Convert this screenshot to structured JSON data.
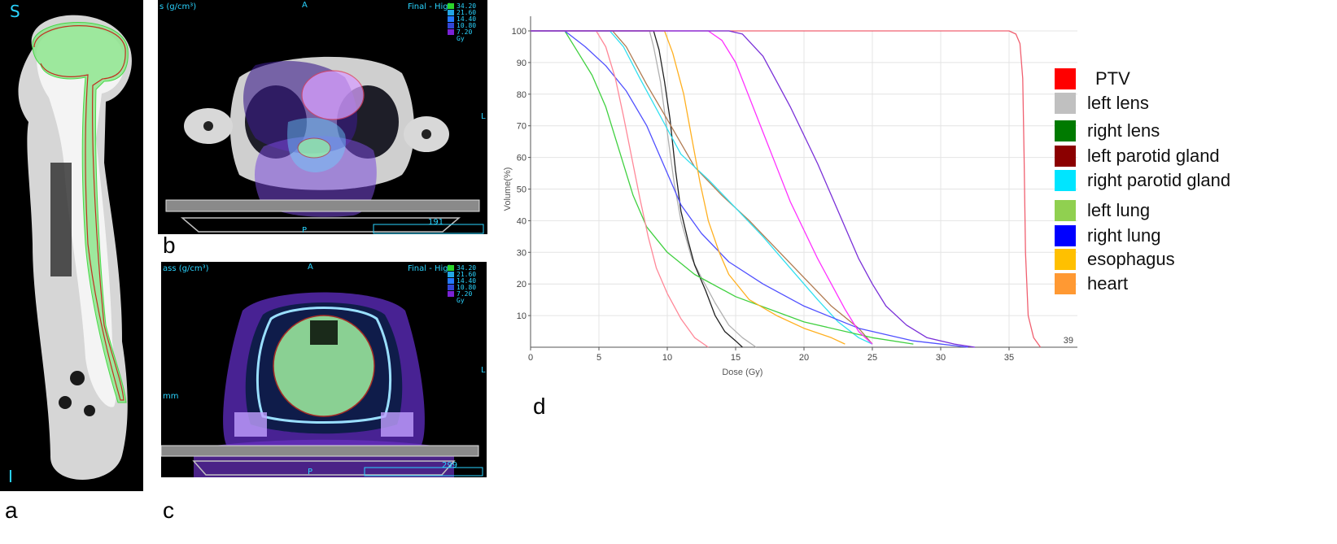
{
  "panels": {
    "a": {
      "label": "a",
      "superior": "S",
      "inferior": "I"
    },
    "b": {
      "label": "b",
      "unit": "s (g/cm³)",
      "anterior": "A",
      "posterior": "P",
      "left": "L",
      "mode": "Final - High",
      "slice": "191"
    },
    "c": {
      "label": "c",
      "unit": "ass (g/cm³)",
      "anterior": "A",
      "posterior": "P",
      "left": "L",
      "mode": "Final - High",
      "slice": "299",
      "side": "mm"
    },
    "d": {
      "label": "d"
    }
  },
  "dose_scale": {
    "unit": "Gy",
    "levels": [
      {
        "value": "34.20",
        "color": "#2bd62b"
      },
      {
        "value": "21.60",
        "color": "#23a6e6"
      },
      {
        "value": "14.40",
        "color": "#2379ff"
      },
      {
        "value": "10.80",
        "color": "#3247d6"
      },
      {
        "value": "7.20",
        "color": "#7a22d6"
      }
    ]
  },
  "chart_data": {
    "type": "line",
    "title": "",
    "xlabel": "Dose (Gy)",
    "ylabel": "Volume(%)",
    "xlim": [
      0,
      40
    ],
    "ylim": [
      0,
      100
    ],
    "xticks": [
      0,
      5,
      10,
      15,
      20,
      25,
      30,
      35
    ],
    "yticks": [
      10,
      20,
      30,
      40,
      50,
      60,
      70,
      80,
      90,
      100
    ],
    "corner_label": "39",
    "grid": true,
    "legend": {
      "position": "right"
    },
    "series": [
      {
        "name": "PTV",
        "color": "#ff0000",
        "line_color": "#f06070",
        "points": [
          [
            0,
            100
          ],
          [
            35,
            100
          ],
          [
            35.5,
            99
          ],
          [
            35.8,
            96
          ],
          [
            36.0,
            85
          ],
          [
            36.1,
            60
          ],
          [
            36.2,
            30
          ],
          [
            36.4,
            10
          ],
          [
            36.8,
            3
          ],
          [
            37.3,
            0
          ]
        ]
      },
      {
        "name": "left lens",
        "color": "#c0c0c0",
        "line_color": "#b0b0b0",
        "points": [
          [
            0,
            100
          ],
          [
            8.7,
            100
          ],
          [
            9.0,
            95
          ],
          [
            9.5,
            84
          ],
          [
            10.0,
            68
          ],
          [
            10.5,
            52
          ],
          [
            11.0,
            40
          ],
          [
            11.8,
            28
          ],
          [
            12.5,
            22
          ],
          [
            13.5,
            14
          ],
          [
            14.5,
            7
          ],
          [
            15.5,
            3
          ],
          [
            16.5,
            0
          ]
        ]
      },
      {
        "name": "right lens",
        "color": "#007a00",
        "line_color": "#202020",
        "points": [
          [
            0,
            100
          ],
          [
            9.0,
            100
          ],
          [
            9.4,
            94
          ],
          [
            9.8,
            84
          ],
          [
            10.2,
            72
          ],
          [
            10.6,
            56
          ],
          [
            11.0,
            43
          ],
          [
            11.5,
            34
          ],
          [
            12.0,
            26
          ],
          [
            12.8,
            18
          ],
          [
            13.5,
            10
          ],
          [
            14.2,
            5
          ],
          [
            15.0,
            2
          ],
          [
            15.5,
            0
          ]
        ]
      },
      {
        "name": "left parotid gland",
        "color": "#8b0000",
        "line_color": "#b07a50",
        "points": [
          [
            0,
            100
          ],
          [
            6.0,
            100
          ],
          [
            7.0,
            95
          ],
          [
            8.5,
            83
          ],
          [
            10.0,
            72
          ],
          [
            12.0,
            57
          ],
          [
            14.0,
            48
          ],
          [
            16.0,
            40
          ],
          [
            18.0,
            31
          ],
          [
            20.0,
            22
          ],
          [
            22.0,
            13
          ],
          [
            24.0,
            6
          ],
          [
            25.0,
            1
          ]
        ]
      },
      {
        "name": "right parotid gland",
        "color": "#00e5ff",
        "line_color": "#30e0f0",
        "points": [
          [
            0,
            100
          ],
          [
            5.8,
            100
          ],
          [
            6.8,
            95
          ],
          [
            8.0,
            85
          ],
          [
            9.5,
            73
          ],
          [
            11.0,
            61
          ],
          [
            13.0,
            53
          ],
          [
            15.0,
            44
          ],
          [
            17.0,
            35
          ],
          [
            19.0,
            25
          ],
          [
            21.0,
            15
          ],
          [
            22.5,
            8
          ],
          [
            24.0,
            3
          ],
          [
            25.0,
            1
          ]
        ]
      },
      {
        "name": "left lung",
        "color": "#90d050",
        "line_color": "#40d040",
        "points": [
          [
            0,
            100
          ],
          [
            2.5,
            100
          ],
          [
            3.5,
            93
          ],
          [
            4.5,
            86
          ],
          [
            5.5,
            76
          ],
          [
            6.5,
            62
          ],
          [
            7.5,
            48
          ],
          [
            8.5,
            38
          ],
          [
            10.0,
            30
          ],
          [
            12.0,
            23
          ],
          [
            15.0,
            16
          ],
          [
            20.0,
            8
          ],
          [
            25.0,
            3
          ],
          [
            28.0,
            1
          ]
        ]
      },
      {
        "name": "right lung",
        "color": "#0000ff",
        "line_color": "#5050ff",
        "points": [
          [
            0,
            100
          ],
          [
            2.5,
            100
          ],
          [
            4.0,
            95
          ],
          [
            5.5,
            89
          ],
          [
            7.0,
            81
          ],
          [
            8.5,
            70
          ],
          [
            10.0,
            55
          ],
          [
            11.0,
            45
          ],
          [
            12.5,
            36
          ],
          [
            14.5,
            27
          ],
          [
            17.0,
            20
          ],
          [
            20.0,
            13
          ],
          [
            24.0,
            6
          ],
          [
            28.0,
            2
          ],
          [
            32.0,
            0
          ]
        ]
      },
      {
        "name": "esophagus",
        "color": "#ffc000",
        "line_color": "#ffb020",
        "points": [
          [
            0,
            100
          ],
          [
            9.8,
            100
          ],
          [
            10.4,
            93
          ],
          [
            11.2,
            80
          ],
          [
            11.8,
            66
          ],
          [
            12.4,
            52
          ],
          [
            13.0,
            40
          ],
          [
            13.8,
            30
          ],
          [
            14.5,
            23
          ],
          [
            16.0,
            15
          ],
          [
            18.0,
            10
          ],
          [
            20.0,
            6
          ],
          [
            22.0,
            3
          ],
          [
            23.0,
            1
          ]
        ]
      },
      {
        "name": "heart",
        "color": "#ff9933",
        "line_color": "#ff8898",
        "points": [
          [
            0,
            100
          ],
          [
            4.8,
            100
          ],
          [
            5.5,
            95
          ],
          [
            6.2,
            85
          ],
          [
            6.8,
            73
          ],
          [
            7.4,
            60
          ],
          [
            8.0,
            47
          ],
          [
            8.6,
            35
          ],
          [
            9.2,
            25
          ],
          [
            10.0,
            17
          ],
          [
            11.0,
            9
          ],
          [
            12.0,
            3
          ],
          [
            13.0,
            0
          ]
        ]
      },
      {
        "name": "",
        "color": "#ff00ff",
        "line_color": "#ff30ff",
        "points": [
          [
            0,
            100
          ],
          [
            13.0,
            100
          ],
          [
            14.0,
            97
          ],
          [
            15.0,
            90
          ],
          [
            16.0,
            79
          ],
          [
            17.0,
            68
          ],
          [
            18.0,
            57
          ],
          [
            19.0,
            46
          ],
          [
            20.0,
            37
          ],
          [
            21.0,
            28
          ],
          [
            22.0,
            20
          ],
          [
            23.0,
            12
          ],
          [
            24.0,
            5
          ],
          [
            25.0,
            1
          ]
        ]
      },
      {
        "name": "",
        "color": "#8040e0",
        "line_color": "#7a30d8",
        "points": [
          [
            0,
            100
          ],
          [
            14.5,
            100
          ],
          [
            15.5,
            99
          ],
          [
            17.0,
            92
          ],
          [
            18.0,
            84
          ],
          [
            19.0,
            76
          ],
          [
            20.0,
            67
          ],
          [
            21.0,
            58
          ],
          [
            22.0,
            48
          ],
          [
            23.0,
            38
          ],
          [
            24.0,
            28
          ],
          [
            25.0,
            20
          ],
          [
            26.0,
            13
          ],
          [
            27.5,
            7
          ],
          [
            29.0,
            3
          ],
          [
            31.0,
            1
          ],
          [
            32.5,
            0
          ]
        ]
      }
    ]
  }
}
